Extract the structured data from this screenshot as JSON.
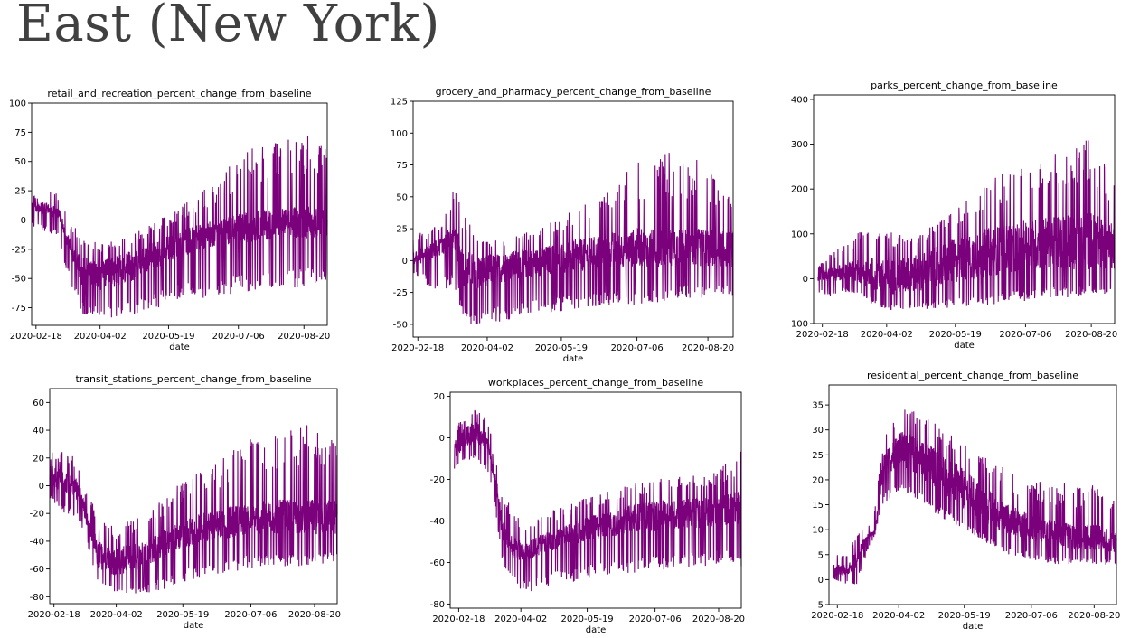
{
  "page": {
    "title": "East (New York)"
  },
  "colors": {
    "series": "#7b007b",
    "axis": "#000000"
  },
  "chart_data": [
    {
      "id": "retail",
      "type": "line",
      "title": "retail_and_recreation_percent_change_from_baseline",
      "xlabel": "date",
      "ylabel": "",
      "x_range": [
        "2020-02-15",
        "2020-09-05"
      ],
      "x_ticks": [
        "2020-02-18",
        "2020-04-02",
        "2020-05-19",
        "2020-07-06",
        "2020-08-20"
      ],
      "ylim": [
        -90,
        100
      ],
      "y_ticks": [
        -75,
        -50,
        -25,
        0,
        25,
        50,
        75,
        100
      ],
      "envelope": {
        "x": [
          "2020-02-15",
          "2020-02-25",
          "2020-03-05",
          "2020-03-10",
          "2020-03-20",
          "2020-04-02",
          "2020-04-20",
          "2020-05-05",
          "2020-05-19",
          "2020-06-05",
          "2020-06-20",
          "2020-07-06",
          "2020-07-20",
          "2020-08-05",
          "2020-08-20",
          "2020-09-05"
        ],
        "low": [
          -5,
          -10,
          -15,
          -45,
          -80,
          -85,
          -82,
          -78,
          -72,
          -68,
          -66,
          -64,
          -62,
          -60,
          -58,
          -58
        ],
        "high": [
          20,
          25,
          22,
          5,
          -10,
          -20,
          -15,
          -5,
          5,
          20,
          35,
          55,
          65,
          70,
          75,
          65
        ],
        "core_low": [
          5,
          5,
          0,
          -20,
          -55,
          -60,
          -55,
          -45,
          -35,
          -28,
          -22,
          -20,
          -18,
          -15,
          -15,
          -15
        ],
        "core_high": [
          15,
          15,
          10,
          -10,
          -30,
          -35,
          -28,
          -20,
          -12,
          -5,
          0,
          5,
          8,
          10,
          12,
          10
        ]
      }
    },
    {
      "id": "grocery",
      "type": "line",
      "title": "grocery_and_pharmacy_percent_change_from_baseline",
      "xlabel": "date",
      "ylabel": "",
      "x_range": [
        "2020-02-15",
        "2020-09-05"
      ],
      "x_ticks": [
        "2020-02-18",
        "2020-04-02",
        "2020-05-19",
        "2020-07-06",
        "2020-08-20"
      ],
      "ylim": [
        -60,
        125
      ],
      "y_ticks": [
        -50,
        -25,
        0,
        25,
        50,
        75,
        100,
        125
      ],
      "envelope": {
        "x": [
          "2020-02-15",
          "2020-02-25",
          "2020-03-05",
          "2020-03-12",
          "2020-03-18",
          "2020-03-25",
          "2020-04-02",
          "2020-04-20",
          "2020-05-05",
          "2020-05-19",
          "2020-06-05",
          "2020-06-20",
          "2020-07-06",
          "2020-07-20",
          "2020-08-05",
          "2020-08-20",
          "2020-09-05"
        ],
        "low": [
          -10,
          -20,
          -25,
          -20,
          -45,
          -55,
          -50,
          -45,
          -42,
          -40,
          -38,
          -36,
          -35,
          -33,
          -30,
          -30,
          -28
        ],
        "high": [
          20,
          25,
          35,
          60,
          40,
          20,
          15,
          20,
          25,
          35,
          45,
          60,
          80,
          90,
          85,
          75,
          45
        ],
        "core_low": [
          -5,
          0,
          5,
          10,
          -20,
          -25,
          -20,
          -15,
          -12,
          -10,
          -8,
          -5,
          -5,
          -5,
          -5,
          -5,
          -5
        ],
        "core_high": [
          8,
          12,
          20,
          30,
          10,
          5,
          5,
          8,
          10,
          15,
          18,
          22,
          25,
          25,
          25,
          25,
          22
        ]
      }
    },
    {
      "id": "parks",
      "type": "line",
      "title": "parks_percent_change_from_baseline",
      "xlabel": "date",
      "ylabel": "",
      "x_range": [
        "2020-02-12",
        "2020-09-05"
      ],
      "x_ticks": [
        "2020-02-18",
        "2020-04-02",
        "2020-05-19",
        "2020-07-06",
        "2020-08-20"
      ],
      "ylim": [
        -100,
        410
      ],
      "y_ticks": [
        -100,
        0,
        100,
        200,
        300,
        400
      ],
      "envelope": {
        "x": [
          "2020-02-15",
          "2020-02-25",
          "2020-03-05",
          "2020-03-15",
          "2020-03-25",
          "2020-04-02",
          "2020-04-20",
          "2020-05-05",
          "2020-05-19",
          "2020-06-05",
          "2020-06-20",
          "2020-07-06",
          "2020-07-20",
          "2020-08-05",
          "2020-08-20",
          "2020-09-05"
        ],
        "low": [
          -30,
          -40,
          -30,
          -40,
          -60,
          -70,
          -70,
          -68,
          -65,
          -60,
          -55,
          -50,
          -45,
          -45,
          -40,
          -30
        ],
        "high": [
          30,
          60,
          80,
          110,
          130,
          110,
          100,
          120,
          160,
          200,
          240,
          250,
          270,
          300,
          320,
          220
        ],
        "core_low": [
          -5,
          -10,
          0,
          -10,
          -30,
          -40,
          -30,
          -20,
          -10,
          0,
          10,
          20,
          20,
          20,
          20,
          20
        ],
        "core_high": [
          15,
          25,
          35,
          45,
          50,
          45,
          50,
          70,
          90,
          110,
          120,
          130,
          140,
          150,
          150,
          120
        ]
      }
    },
    {
      "id": "transit",
      "type": "line",
      "title": "transit_stations_percent_change_from_baseline",
      "xlabel": "date",
      "ylabel": "",
      "x_range": [
        "2020-02-15",
        "2020-09-05"
      ],
      "x_ticks": [
        "2020-02-18",
        "2020-04-02",
        "2020-05-19",
        "2020-07-06",
        "2020-08-20"
      ],
      "ylim": [
        -85,
        70
      ],
      "y_ticks": [
        -80,
        -60,
        -40,
        -20,
        0,
        20,
        40,
        60
      ],
      "envelope": {
        "x": [
          "2020-02-15",
          "2020-02-25",
          "2020-03-05",
          "2020-03-12",
          "2020-03-20",
          "2020-04-02",
          "2020-04-20",
          "2020-05-05",
          "2020-05-19",
          "2020-06-05",
          "2020-06-20",
          "2020-07-06",
          "2020-07-20",
          "2020-08-05",
          "2020-08-20",
          "2020-09-05"
        ],
        "low": [
          -10,
          -20,
          -22,
          -40,
          -70,
          -80,
          -78,
          -75,
          -70,
          -65,
          -62,
          -60,
          -58,
          -58,
          -58,
          -55
        ],
        "high": [
          25,
          25,
          20,
          0,
          -20,
          -30,
          -20,
          -10,
          5,
          15,
          25,
          35,
          40,
          42,
          45,
          30
        ],
        "core_low": [
          0,
          -5,
          -10,
          -30,
          -60,
          -65,
          -60,
          -52,
          -45,
          -40,
          -38,
          -35,
          -35,
          -35,
          -35,
          -35
        ],
        "core_high": [
          15,
          10,
          5,
          -15,
          -40,
          -45,
          -40,
          -32,
          -25,
          -18,
          -15,
          -12,
          -10,
          -10,
          -10,
          -10
        ]
      }
    },
    {
      "id": "workplaces",
      "type": "line",
      "title": "workplaces_percent_change_from_baseline",
      "xlabel": "date",
      "ylabel": "",
      "x_range": [
        "2020-02-12",
        "2020-09-05"
      ],
      "x_ticks": [
        "2020-02-18",
        "2020-04-02",
        "2020-05-19",
        "2020-07-06",
        "2020-08-20"
      ],
      "ylim": [
        -82,
        22
      ],
      "y_ticks": [
        -80,
        -60,
        -40,
        -20,
        0,
        20
      ],
      "envelope": {
        "x": [
          "2020-02-15",
          "2020-02-22",
          "2020-03-01",
          "2020-03-08",
          "2020-03-14",
          "2020-03-20",
          "2020-03-28",
          "2020-04-05",
          "2020-04-20",
          "2020-05-05",
          "2020-05-19",
          "2020-06-05",
          "2020-06-20",
          "2020-07-06",
          "2020-07-20",
          "2020-08-05",
          "2020-08-20",
          "2020-09-05"
        ],
        "low": [
          -15,
          -12,
          -10,
          -15,
          -30,
          -60,
          -72,
          -75,
          -72,
          -70,
          -68,
          -66,
          -65,
          -64,
          -63,
          -63,
          -62,
          -62
        ],
        "high": [
          5,
          10,
          15,
          10,
          0,
          -25,
          -35,
          -38,
          -35,
          -32,
          -28,
          -25,
          -22,
          -20,
          -18,
          -18,
          -15,
          -5
        ],
        "core_low": [
          -10,
          -5,
          -2,
          -5,
          -20,
          -50,
          -58,
          -60,
          -55,
          -52,
          -50,
          -48,
          -45,
          -45,
          -44,
          -44,
          -42,
          -42
        ],
        "core_high": [
          0,
          5,
          8,
          5,
          -10,
          -40,
          -48,
          -50,
          -45,
          -42,
          -38,
          -35,
          -32,
          -30,
          -30,
          -28,
          -28,
          -25
        ]
      }
    },
    {
      "id": "residential",
      "type": "line",
      "title": "residential_percent_change_from_baseline",
      "xlabel": "date",
      "ylabel": "",
      "x_range": [
        "2020-02-12",
        "2020-09-05"
      ],
      "x_ticks": [
        "2020-02-18",
        "2020-04-02",
        "2020-05-19",
        "2020-07-06",
        "2020-08-20"
      ],
      "ylim": [
        -5,
        39
      ],
      "y_ticks": [
        -5,
        0,
        5,
        10,
        15,
        20,
        25,
        30,
        35
      ],
      "envelope": {
        "x": [
          "2020-02-15",
          "2020-02-25",
          "2020-03-03",
          "2020-03-10",
          "2020-03-16",
          "2020-03-22",
          "2020-04-02",
          "2020-04-20",
          "2020-05-05",
          "2020-05-19",
          "2020-06-05",
          "2020-06-20",
          "2020-07-06",
          "2020-07-20",
          "2020-08-05",
          "2020-08-20",
          "2020-09-05"
        ],
        "low": [
          0,
          -1,
          -1,
          5,
          9,
          15,
          18,
          15,
          12,
          10,
          7,
          5,
          4,
          3,
          3,
          3,
          3
        ],
        "high": [
          5,
          5,
          10,
          10,
          15,
          28,
          35,
          33,
          30,
          27,
          25,
          22,
          20,
          20,
          19,
          19,
          18
        ],
        "core_low": [
          1,
          1,
          2,
          8,
          9,
          20,
          23,
          20,
          17,
          14,
          11,
          9,
          8,
          7,
          6,
          6,
          5
        ],
        "core_high": [
          3,
          3,
          6,
          9,
          10,
          25,
          30,
          28,
          25,
          22,
          18,
          15,
          13,
          12,
          11,
          11,
          10
        ]
      }
    }
  ]
}
